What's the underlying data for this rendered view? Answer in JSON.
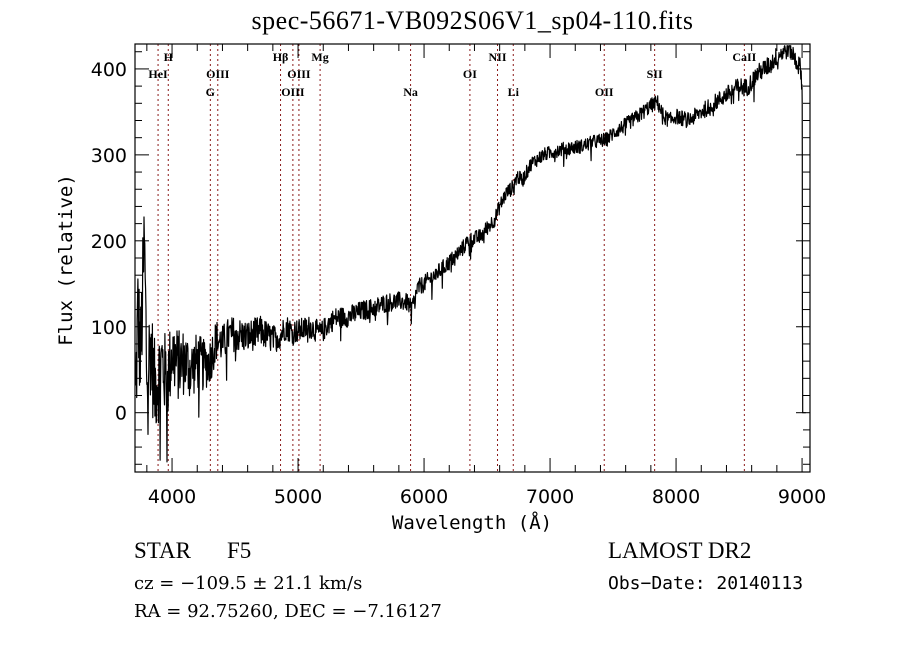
{
  "chart_data": {
    "type": "line",
    "title": "spec-56671-VB092S06V1_sp04-110.fits",
    "xlabel": "Wavelength (Å)",
    "ylabel": "Flux (relative)",
    "xlim": [
      3706,
      9063
    ],
    "ylim": [
      -69,
      429
    ],
    "xticks": [
      4000,
      5000,
      6000,
      7000,
      8000,
      9000
    ],
    "xtick_labels": [
      "4000",
      "5000",
      "6000",
      "7000",
      "8000",
      "9000"
    ],
    "yticks": [
      0,
      100,
      200,
      300,
      400
    ],
    "ytick_labels": [
      "0",
      "100",
      "200",
      "300",
      "400"
    ],
    "x_minor_step": 200,
    "y_minor_step": 20,
    "grid": false,
    "line_color": "#000000",
    "marker_color": "#8b1a1a",
    "spectrum_anchors": [
      [
        3710,
        10
      ],
      [
        3730,
        120
      ],
      [
        3750,
        60
      ],
      [
        3780,
        200
      ],
      [
        3800,
        40
      ],
      [
        3830,
        80
      ],
      [
        3860,
        30
      ],
      [
        3890,
        40
      ],
      [
        3920,
        60
      ],
      [
        3960,
        35
      ],
      [
        4000,
        70
      ],
      [
        4050,
        55
      ],
      [
        4100,
        60
      ],
      [
        4150,
        50
      ],
      [
        4200,
        60
      ],
      [
        4250,
        55
      ],
      [
        4300,
        60
      ],
      [
        4350,
        85
      ],
      [
        4400,
        80
      ],
      [
        4450,
        90
      ],
      [
        4500,
        92
      ],
      [
        4600,
        88
      ],
      [
        4700,
        95
      ],
      [
        4800,
        85
      ],
      [
        4860,
        90
      ],
      [
        4900,
        100
      ],
      [
        4950,
        95
      ],
      [
        5000,
        95
      ],
      [
        5100,
        100
      ],
      [
        5180,
        92
      ],
      [
        5250,
        105
      ],
      [
        5300,
        110
      ],
      [
        5400,
        112
      ],
      [
        5500,
        118
      ],
      [
        5600,
        122
      ],
      [
        5700,
        128
      ],
      [
        5800,
        130
      ],
      [
        5870,
        128
      ],
      [
        5900,
        120
      ],
      [
        5950,
        145
      ],
      [
        6000,
        150
      ],
      [
        6100,
        162
      ],
      [
        6200,
        175
      ],
      [
        6300,
        190
      ],
      [
        6350,
        200
      ],
      [
        6450,
        205
      ],
      [
        6500,
        215
      ],
      [
        6560,
        225
      ],
      [
        6600,
        240
      ],
      [
        6650,
        255
      ],
      [
        6700,
        262
      ],
      [
        6740,
        275
      ],
      [
        6780,
        270
      ],
      [
        6850,
        290
      ],
      [
        6950,
        300
      ],
      [
        7050,
        305
      ],
      [
        7150,
        308
      ],
      [
        7250,
        310
      ],
      [
        7350,
        315
      ],
      [
        7450,
        318
      ],
      [
        7500,
        325
      ],
      [
        7600,
        335
      ],
      [
        7700,
        345
      ],
      [
        7780,
        355
      ],
      [
        7850,
        362
      ],
      [
        7900,
        345
      ],
      [
        7950,
        340
      ],
      [
        8000,
        345
      ],
      [
        8100,
        340
      ],
      [
        8200,
        350
      ],
      [
        8300,
        360
      ],
      [
        8400,
        370
      ],
      [
        8500,
        380
      ],
      [
        8560,
        378
      ],
      [
        8600,
        385
      ],
      [
        8650,
        395
      ],
      [
        8700,
        400
      ],
      [
        8750,
        405
      ],
      [
        8800,
        415
      ],
      [
        8850,
        420
      ],
      [
        8900,
        425
      ],
      [
        8950,
        410
      ],
      [
        8990,
        400
      ],
      [
        9000,
        380
      ],
      [
        9005,
        0
      ]
    ],
    "noise_profile": [
      [
        3706,
        70
      ],
      [
        4000,
        45
      ],
      [
        4400,
        22
      ],
      [
        5000,
        14
      ],
      [
        6000,
        10
      ],
      [
        7000,
        8
      ],
      [
        8000,
        9
      ],
      [
        9000,
        12
      ]
    ],
    "spectral_lines": [
      {
        "name": "HeI",
        "wavelength": 3889,
        "row": 2
      },
      {
        "name": "H",
        "wavelength": 3970,
        "row": 1
      },
      {
        "name": "G",
        "wavelength": 4304,
        "row": 3
      },
      {
        "name": "OIII",
        "wavelength": 4363,
        "row": 2
      },
      {
        "name": "Hβ",
        "wavelength": 4861,
        "row": 1
      },
      {
        "name": "OIII",
        "wavelength": 4959,
        "row": 3
      },
      {
        "name": "OIII",
        "wavelength": 5007,
        "row": 2
      },
      {
        "name": "Mg",
        "wavelength": 5175,
        "row": 1
      },
      {
        "name": "Na",
        "wavelength": 5893,
        "row": 3
      },
      {
        "name": "OI",
        "wavelength": 6364,
        "row": 2
      },
      {
        "name": "NII",
        "wavelength": 6583,
        "row": 1
      },
      {
        "name": "Li",
        "wavelength": 6708,
        "row": 3
      },
      {
        "name": "OII",
        "wavelength": 7430,
        "row": 3
      },
      {
        "name": "SII",
        "wavelength": 7830,
        "row": 2
      },
      {
        "name": "CaII",
        "wavelength": 8542,
        "row": 1
      }
    ]
  },
  "info": {
    "class": "STAR",
    "subclass": "F5",
    "cz": "cz = −109.5 ± 21.1 km/s",
    "radec": "RA =  92.75260, DEC =  −7.16127",
    "survey": "LAMOST DR2",
    "obs_date": "Obs−Date: 20140113"
  }
}
